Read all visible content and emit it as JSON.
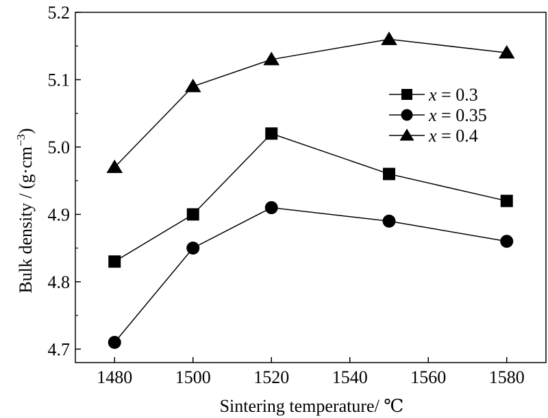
{
  "chart_data": {
    "type": "line",
    "xlabel": "Sintering temperature/ ℃",
    "ylabel_main": "Bulk density / (g·cm",
    "ylabel_sup": "−3",
    "ylabel_close": ")",
    "xlim": [
      1470,
      1590
    ],
    "ylim": [
      4.68,
      5.2
    ],
    "xticks": [
      1480,
      1500,
      1520,
      1540,
      1560,
      1580
    ],
    "yticks": [
      4.7,
      4.8,
      4.9,
      5.0,
      5.1,
      5.2
    ],
    "xtick_labels": [
      "1480",
      "1500",
      "1520",
      "1540",
      "1560",
      "1580"
    ],
    "ytick_labels": [
      "4.7",
      "4.8",
      "4.9",
      "5.0",
      "5.1",
      "5.2"
    ],
    "x": [
      1480,
      1500,
      1520,
      1550,
      1580
    ],
    "legend_position": "upper-right",
    "series": [
      {
        "var": "x",
        "eq": " = 0.3",
        "marker": "square",
        "values": [
          4.83,
          4.9,
          5.02,
          4.96,
          4.92
        ]
      },
      {
        "var": "x",
        "eq": " = 0.35",
        "marker": "circle",
        "values": [
          4.71,
          4.85,
          4.91,
          4.89,
          4.86
        ]
      },
      {
        "var": "x",
        "eq": " = 0.4",
        "marker": "triangle",
        "values": [
          4.97,
          5.09,
          5.13,
          5.16,
          5.14
        ]
      }
    ]
  }
}
